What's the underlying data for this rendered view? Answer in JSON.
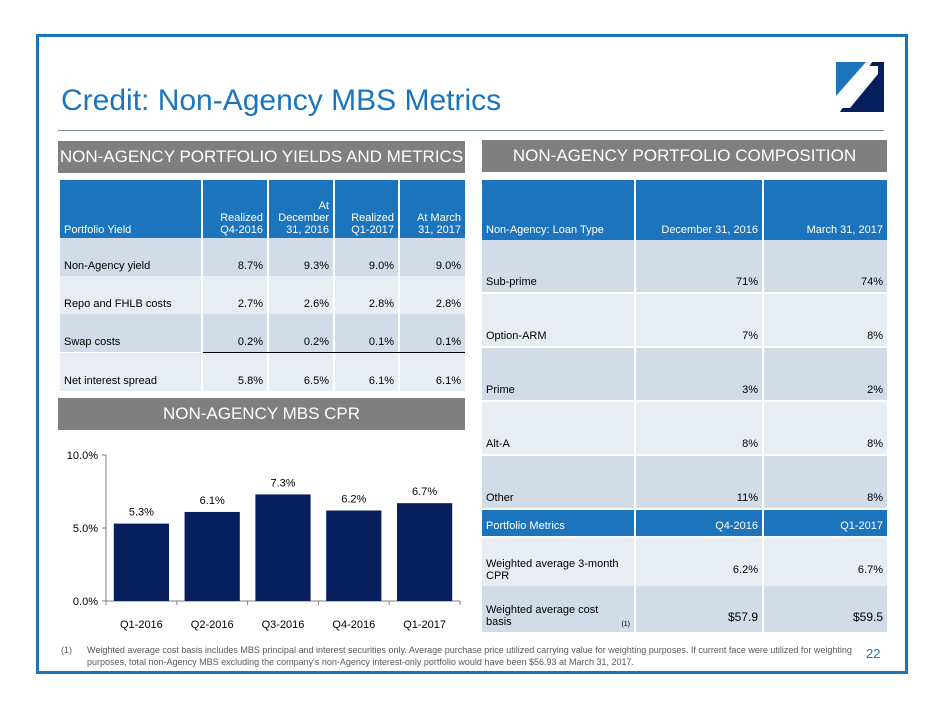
{
  "title": "Credit: Non-Agency MBS Metrics",
  "page_number": "22",
  "colors": {
    "accent": "#1c75bc",
    "navy": "#061f5c",
    "section": "#7f7f7f",
    "row_dark": "#d2dbe8",
    "row_light": "#e8edf4"
  },
  "logo_icon": "company-logo-icon",
  "sections": {
    "yields": "NON-AGENCY PORTFOLIO YIELDS AND METRICS",
    "composition": "NON-AGENCY PORTFOLIO COMPOSITION",
    "cpr": "NON-AGENCY MBS CPR"
  },
  "yields_table": {
    "headers": [
      "Portfolio Yield",
      "Realized Q4-2016",
      "At December 31, 2016",
      "Realized Q1-2017",
      "At March 31, 2017"
    ],
    "rows": [
      {
        "label": "Non-Agency yield",
        "values": [
          "8.7%",
          "9.3%",
          "9.0%",
          "9.0%"
        ]
      },
      {
        "label": "Repo and FHLB costs",
        "values": [
          "2.7%",
          "2.6%",
          "2.8%",
          "2.8%"
        ]
      },
      {
        "label": "Swap costs",
        "values": [
          "0.2%",
          "0.2%",
          "0.1%",
          "0.1%"
        ]
      },
      {
        "label": "Net interest spread",
        "values": [
          "5.8%",
          "6.5%",
          "6.1%",
          "6.1%"
        ]
      }
    ]
  },
  "composition_table": {
    "headers": [
      "Non-Agency: Loan Type",
      "December 31, 2016",
      "March 31, 2017"
    ],
    "rows": [
      {
        "label": "Sub-prime",
        "values": [
          "71%",
          "74%"
        ]
      },
      {
        "label": "Option-ARM",
        "values": [
          "7%",
          "8%"
        ]
      },
      {
        "label": "Prime",
        "values": [
          "3%",
          "2%"
        ]
      },
      {
        "label": "Alt-A",
        "values": [
          "8%",
          "8%"
        ]
      },
      {
        "label": "Other",
        "values": [
          "11%",
          "8%"
        ]
      }
    ],
    "metrics_headers": [
      "Portfolio Metrics",
      "Q4-2016",
      "Q1-2017"
    ],
    "metrics_rows": [
      {
        "label": "Weighted average 3-month CPR",
        "sup": "",
        "values": [
          "6.2%",
          "6.7%"
        ]
      },
      {
        "label": "Weighted average cost basis",
        "sup": "(1)",
        "values": [
          "$57.9",
          "$59.5"
        ]
      }
    ]
  },
  "chart_data": {
    "type": "bar",
    "title": "",
    "xlabel": "",
    "ylabel": "",
    "categories": [
      "Q1-2016",
      "Q2-2016",
      "Q3-2016",
      "Q4-2016",
      "Q1-2017"
    ],
    "values": [
      5.3,
      6.1,
      7.3,
      6.2,
      6.7
    ],
    "data_labels": [
      "5.3%",
      "6.1%",
      "7.3%",
      "6.2%",
      "6.7%"
    ],
    "ylim": [
      0,
      10
    ],
    "yticks": [
      0,
      5,
      10
    ],
    "ytick_labels": [
      "0.0%",
      "5.0%",
      "10.0%"
    ],
    "bar_color": "#061f5c",
    "grid": false,
    "legend": "none"
  },
  "footnote": {
    "marker": "(1)",
    "text": "Weighted average cost basis includes MBS principal and interest securities only.  Average purchase price utilized carrying value for weighting purposes.  If current face were utilized for weighting purposes, total non-Agency MBS excluding the company's non-Agency interest-only portfolio would have been $56.93 at March 31, 2017."
  }
}
